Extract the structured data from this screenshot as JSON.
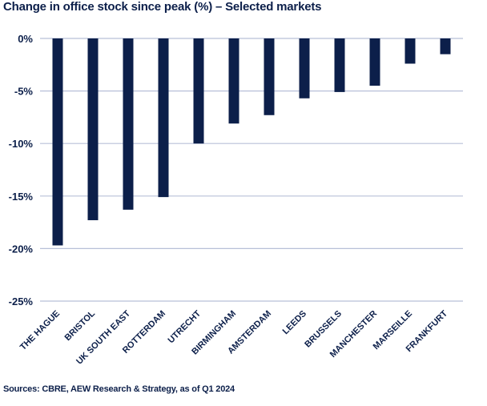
{
  "title": "Change in office stock since peak (%) – Selected markets",
  "source": "Sources: CBRE, AEW Research & Strategy, as of Q1 2024",
  "colors": {
    "bar": "#0c1f4a",
    "grid": "#b8c0d8",
    "text": "#0c1f4a"
  },
  "chart_data": {
    "type": "bar",
    "title": "Change in office stock since peak (%) – Selected markets",
    "xlabel": "",
    "ylabel": "",
    "categories": [
      "THE HAGUE",
      "BRISTOL",
      "UK SOUTH EAST",
      "ROTTERDAM",
      "UTRECHT",
      "BIRMINGHAM",
      "AMSTERDAM",
      "LEEDS",
      "BRUSSELS",
      "MANCHESTER",
      "MARSEILLE",
      "FRANKFURT"
    ],
    "values": [
      -19.7,
      -17.3,
      -16.3,
      -15.1,
      -10.0,
      -8.1,
      -7.3,
      -5.7,
      -5.1,
      -4.5,
      -2.4,
      -1.5
    ],
    "ylim": [
      -25,
      0
    ],
    "yticks": [
      0,
      -5,
      -10,
      -15,
      -20,
      -25
    ],
    "ytick_labels": [
      "0%",
      "-5%",
      "-10%",
      "-15%",
      "-20%",
      "-25%"
    ],
    "grid": true,
    "legend": "none"
  }
}
